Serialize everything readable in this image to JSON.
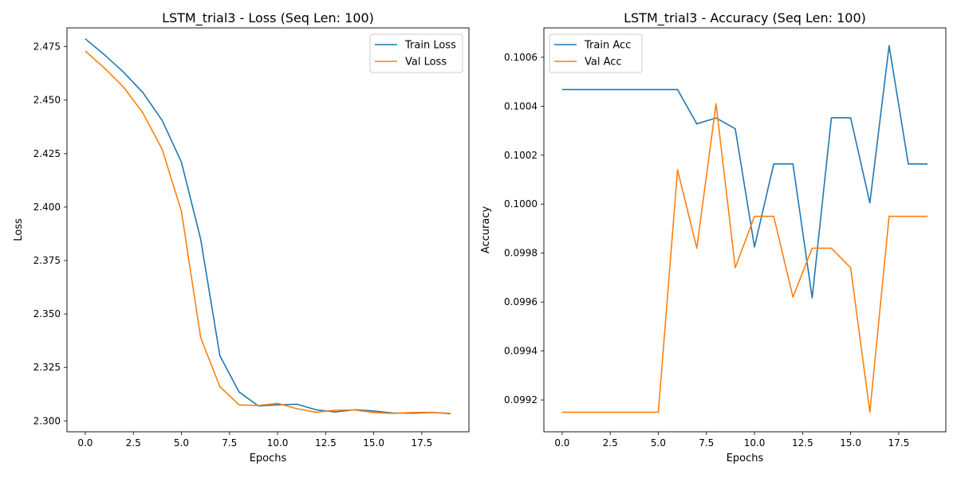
{
  "chart_data": [
    {
      "type": "line",
      "title": "LSTM_trial3 - Loss (Seq Len: 100)",
      "xlabel": "Epochs",
      "ylabel": "Loss",
      "xlim": [
        -0.95,
        19.95
      ],
      "ylim": [
        2.2949,
        2.4838
      ],
      "xticks": [
        0,
        2.5,
        5,
        7.5,
        10,
        12.5,
        15,
        17.5
      ],
      "xtick_labels": [
        "0.0",
        "2.5",
        "5.0",
        "7.5",
        "10.0",
        "12.5",
        "15.0",
        "17.5"
      ],
      "yticks": [
        2.3,
        2.325,
        2.35,
        2.375,
        2.4,
        2.425,
        2.45,
        2.475
      ],
      "ytick_labels": [
        "2.300",
        "2.325",
        "2.350",
        "2.375",
        "2.400",
        "2.425",
        "2.450",
        "2.475"
      ],
      "grid": false,
      "legend_position": "top-right",
      "x": [
        0,
        1,
        2,
        3,
        4,
        5,
        6,
        7,
        8,
        9,
        10,
        11,
        12,
        13,
        14,
        15,
        16,
        17,
        18,
        19
      ],
      "series": [
        {
          "name": "Train Loss",
          "color": "#1f77b4",
          "values": [
            2.4787,
            2.4712,
            2.463,
            2.4535,
            2.4405,
            2.421,
            2.385,
            2.3305,
            2.3135,
            2.307,
            2.3075,
            2.3078,
            2.3052,
            2.3042,
            2.3052,
            2.3046,
            2.3037,
            2.3036,
            2.3039,
            2.3035
          ]
        },
        {
          "name": "Val Loss",
          "color": "#ff7f0e",
          "values": [
            2.473,
            2.465,
            2.456,
            2.444,
            2.427,
            2.398,
            2.339,
            2.316,
            2.3075,
            2.3072,
            2.3082,
            2.3057,
            2.304,
            2.305,
            2.3051,
            2.3039,
            2.3035,
            2.3039,
            2.304,
            2.3033
          ]
        }
      ]
    },
    {
      "type": "line",
      "title": "LSTM_trial3 - Accuracy (Seq Len: 100)",
      "xlabel": "Epochs",
      "ylabel": "Accuracy",
      "xlim": [
        -0.95,
        19.95
      ],
      "ylim": [
        0.09907,
        0.10072
      ],
      "xticks": [
        0,
        2.5,
        5,
        7.5,
        10,
        12.5,
        15,
        17.5
      ],
      "xtick_labels": [
        "0.0",
        "2.5",
        "5.0",
        "7.5",
        "10.0",
        "12.5",
        "15.0",
        "17.5"
      ],
      "yticks": [
        0.0992,
        0.0994,
        0.0996,
        0.0998,
        0.1,
        0.1002,
        0.1004,
        0.1006
      ],
      "ytick_labels": [
        "0.0992",
        "0.0994",
        "0.0996",
        "0.0998",
        "0.1000",
        "0.1002",
        "0.1004",
        "0.1006"
      ],
      "grid": false,
      "legend_position": "top-left",
      "x": [
        0,
        1,
        2,
        3,
        4,
        5,
        6,
        7,
        8,
        9,
        10,
        11,
        12,
        13,
        14,
        15,
        16,
        17,
        18,
        19
      ],
      "series": [
        {
          "name": "Train Acc",
          "color": "#1f77b4",
          "values": [
            0.100468,
            0.100468,
            0.100468,
            0.100468,
            0.100468,
            0.100468,
            0.100468,
            0.100328,
            0.100352,
            0.100308,
            0.099825,
            0.100164,
            0.100164,
            0.099617,
            0.100353,
            0.100353,
            0.100005,
            0.100647,
            0.100164,
            0.100164
          ]
        },
        {
          "name": "Val Acc",
          "color": "#ff7f0e",
          "values": [
            0.09915,
            0.09915,
            0.09915,
            0.09915,
            0.09915,
            0.09915,
            0.10014,
            0.09982,
            0.10041,
            0.09974,
            0.09995,
            0.09995,
            0.09962,
            0.09982,
            0.09982,
            0.09974,
            0.09915,
            0.09995,
            0.09995,
            0.09995
          ]
        }
      ]
    }
  ]
}
